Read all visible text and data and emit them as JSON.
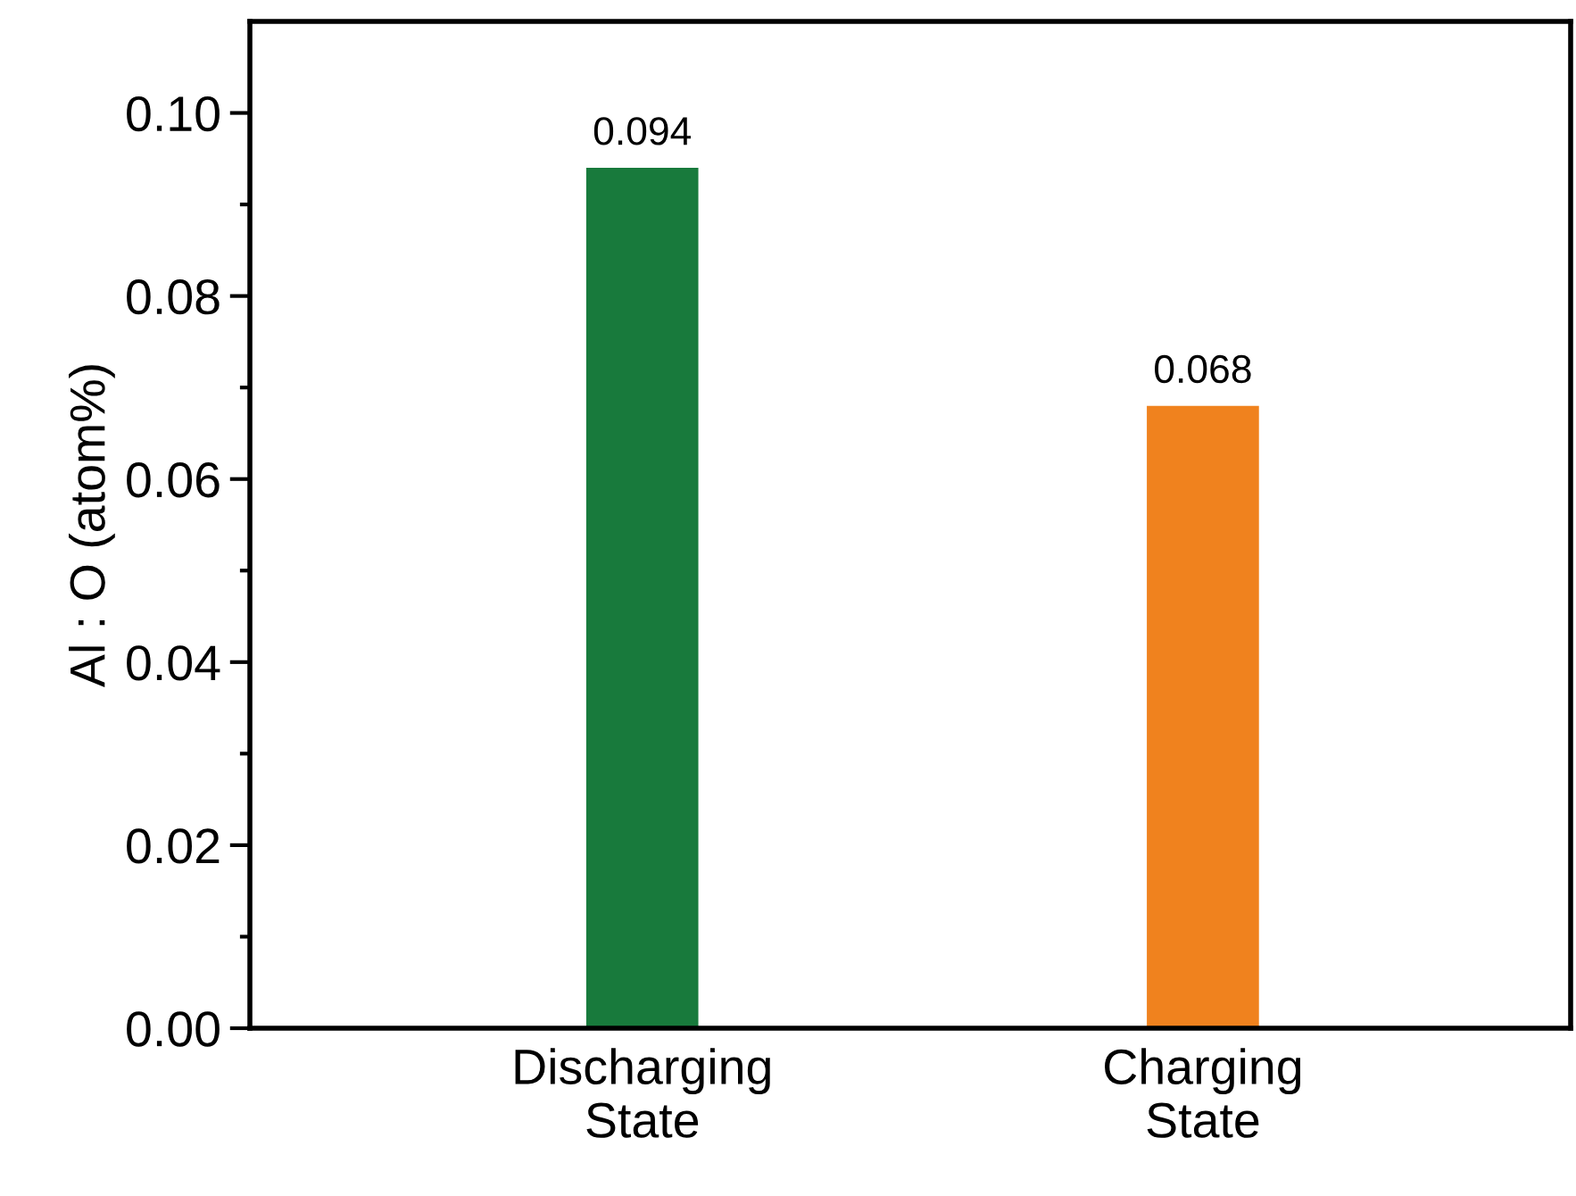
{
  "chart_data": {
    "type": "bar",
    "ylabel": "Al : O (atom%)",
    "categories": [
      "Discharging\nState",
      "Charging\nState"
    ],
    "values": [
      0.094,
      0.068
    ],
    "colors": [
      "#187a3c",
      "#f0821e"
    ],
    "data_labels": true,
    "ylim": [
      0,
      0.11
    ],
    "yticks": [
      {
        "value": 0,
        "label": "0.00"
      },
      0.02,
      0.04,
      0.06,
      0.08,
      {
        "value": 0.1,
        "label": "0.10"
      }
    ],
    "grid": false
  }
}
